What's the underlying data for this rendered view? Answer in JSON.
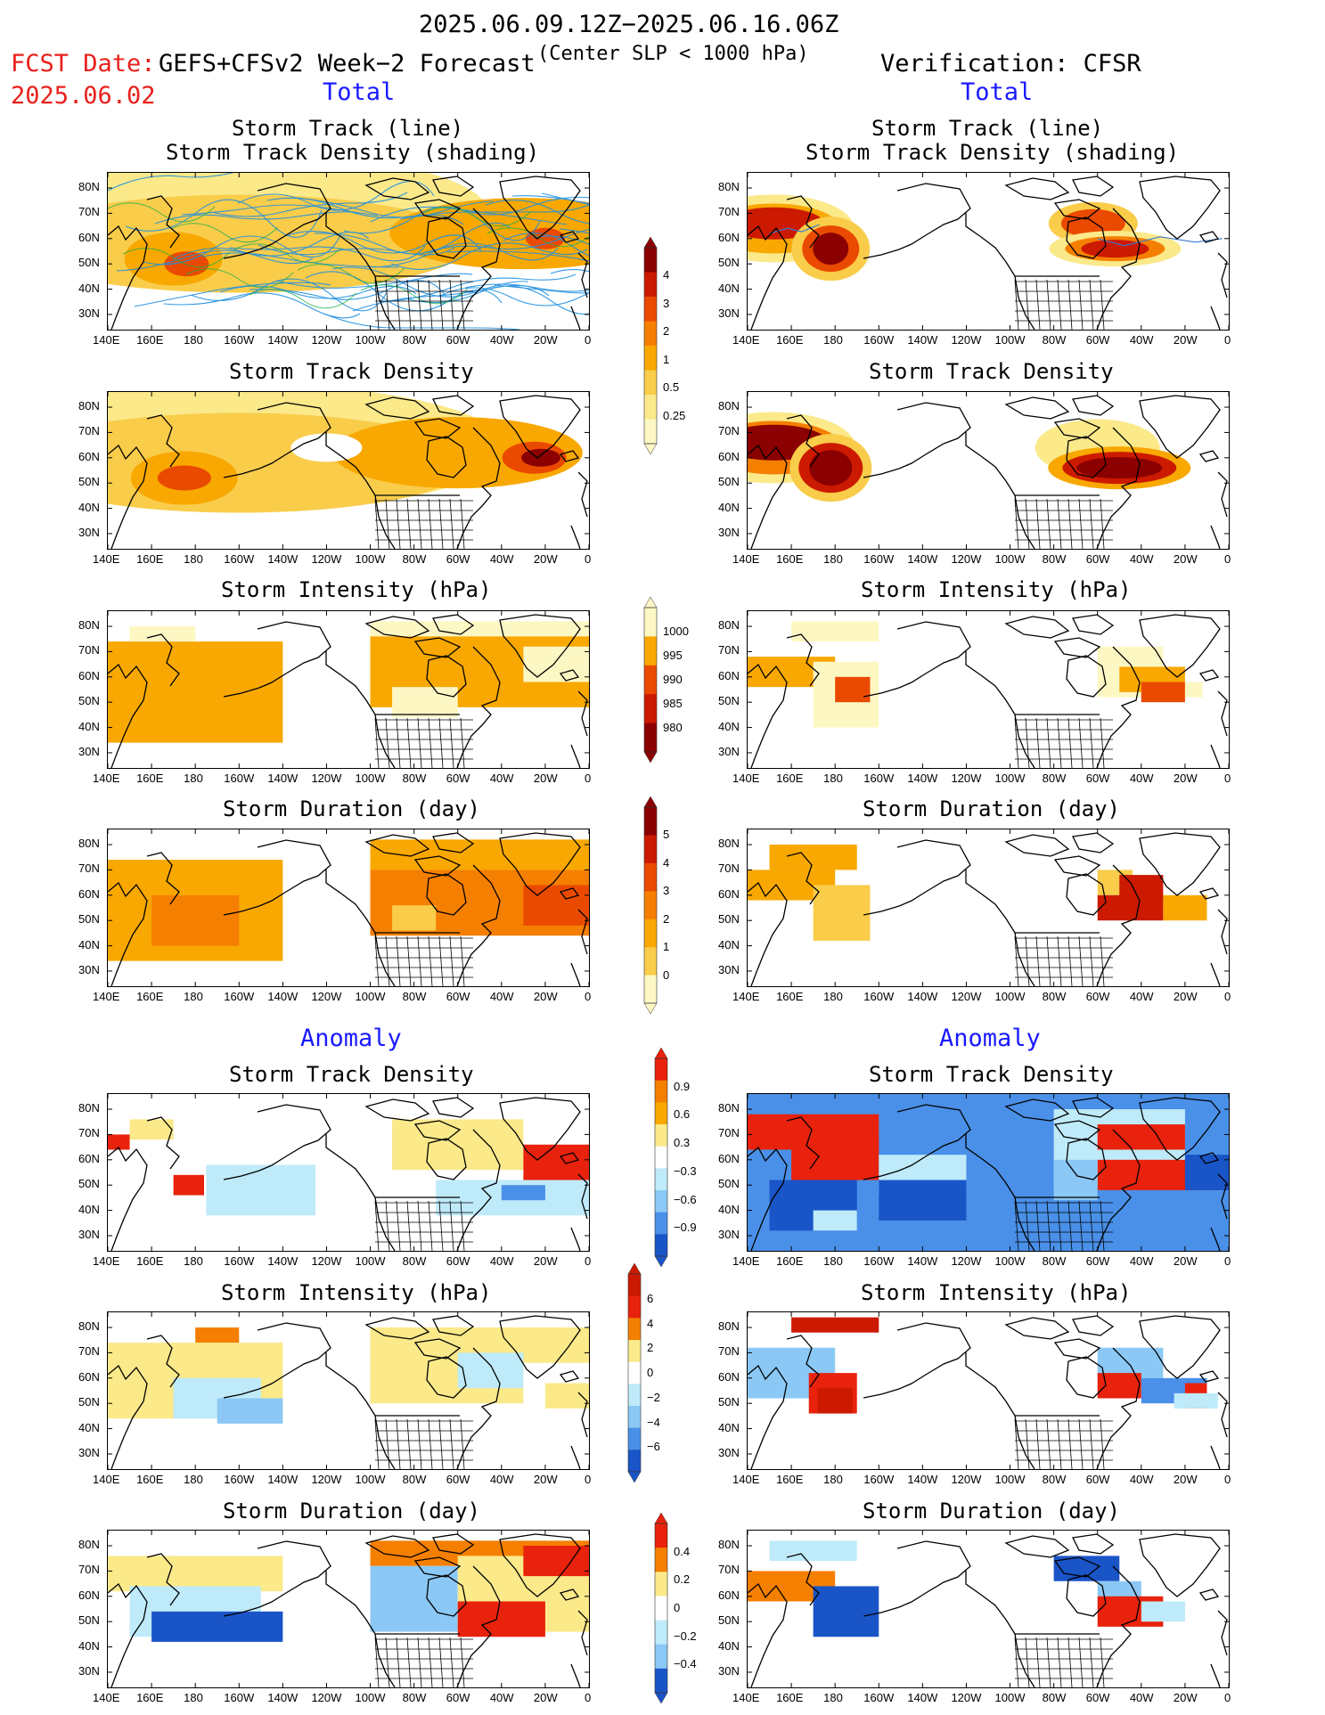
{
  "header": {
    "period": "2025.06.09.12Z−2025.06.16.06Z",
    "fcst_label": "FCST Date:",
    "fcst_date": "2025.06.02",
    "model": "GEFS+CFSv2 Week−2 Forecast",
    "criterion": "(Center SLP < 1000 hPa)",
    "verification": "Verification: CFSR"
  },
  "section_labels": {
    "total_left": "Total",
    "total_right": "Total",
    "anomaly_left": "Anomaly",
    "anomaly_right": "Anomaly"
  },
  "axes": {
    "lat_labels": [
      "80N",
      "70N",
      "60N",
      "50N",
      "40N",
      "30N"
    ],
    "lon_labels": [
      "140E",
      "160E",
      "180",
      "160W",
      "140W",
      "120W",
      "100W",
      "80W",
      "60W",
      "40W",
      "20W",
      "0"
    ]
  },
  "panels": {
    "l1": {
      "title1": "Storm Track (line)",
      "title2": "Storm Track Density (shading)"
    },
    "r1": {
      "title1": "Storm Track (line)",
      "title2": "Storm Track Density (shading)"
    },
    "l2": {
      "title": "Storm Track Density"
    },
    "r2": {
      "title": "Storm Track Density"
    },
    "l3": {
      "title": "Storm Intensity (hPa)"
    },
    "r3": {
      "title": "Storm Intensity (hPa)"
    },
    "l4": {
      "title": "Storm Duration (day)"
    },
    "r4": {
      "title": "Storm Duration (day)"
    },
    "l5": {
      "title": "Storm Track Density"
    },
    "r5": {
      "title": "Storm Track Density"
    },
    "l6": {
      "title": "Storm Intensity (hPa)"
    },
    "r6": {
      "title": "Storm Intensity (hPa)"
    },
    "l7": {
      "title": "Storm Duration (day)"
    },
    "r7": {
      "title": "Storm Duration (day)"
    }
  },
  "colorbars": {
    "density": {
      "labels": [
        "4",
        "3",
        "2",
        "1",
        "0.5",
        "0.25"
      ],
      "colors": [
        "#8b0000",
        "#cc1a00",
        "#ea4a00",
        "#f57f00",
        "#f8a800",
        "#f9cc4a",
        "#fbe98a",
        "#fdf7c4"
      ]
    },
    "intensity": {
      "labels": [
        "1000",
        "995",
        "990",
        "985",
        "980"
      ],
      "colors": [
        "#fdf7c4",
        "#f8a800",
        "#ea4a00",
        "#cc1a00",
        "#8b0000"
      ]
    },
    "duration": {
      "labels": [
        "5",
        "4",
        "3",
        "2",
        "1",
        "0"
      ],
      "colors": [
        "#8b0000",
        "#cc1a00",
        "#ea4a00",
        "#f57f00",
        "#f8a800",
        "#f9cc4a",
        "#fdf7c4"
      ]
    },
    "anom_density": {
      "labels": [
        "0.9",
        "0.6",
        "0.3",
        "−0.3",
        "−0.6",
        "−0.9"
      ],
      "colors": [
        "#e8220c",
        "#f57f00",
        "#f8a800",
        "#fbe98a",
        "#ffffff",
        "#bfeafa",
        "#8bc8f5",
        "#4a90e8",
        "#1a55c8"
      ]
    },
    "anom_intensity": {
      "labels": [
        "6",
        "4",
        "2",
        "0",
        "−2",
        "−4",
        "−6"
      ],
      "colors": [
        "#cc1a00",
        "#e8220c",
        "#f57f00",
        "#fbe98a",
        "#ffffff",
        "#bfeafa",
        "#8bc8f5",
        "#4a90e8",
        "#1a55c8"
      ]
    },
    "anom_duration": {
      "labels": [
        "0.4",
        "0.2",
        "0",
        "−0.2",
        "−0.4"
      ],
      "colors": [
        "#e8220c",
        "#f57f00",
        "#fbe98a",
        "#ffffff",
        "#bfeafa",
        "#8bc8f5",
        "#1a55c8"
      ]
    }
  }
}
